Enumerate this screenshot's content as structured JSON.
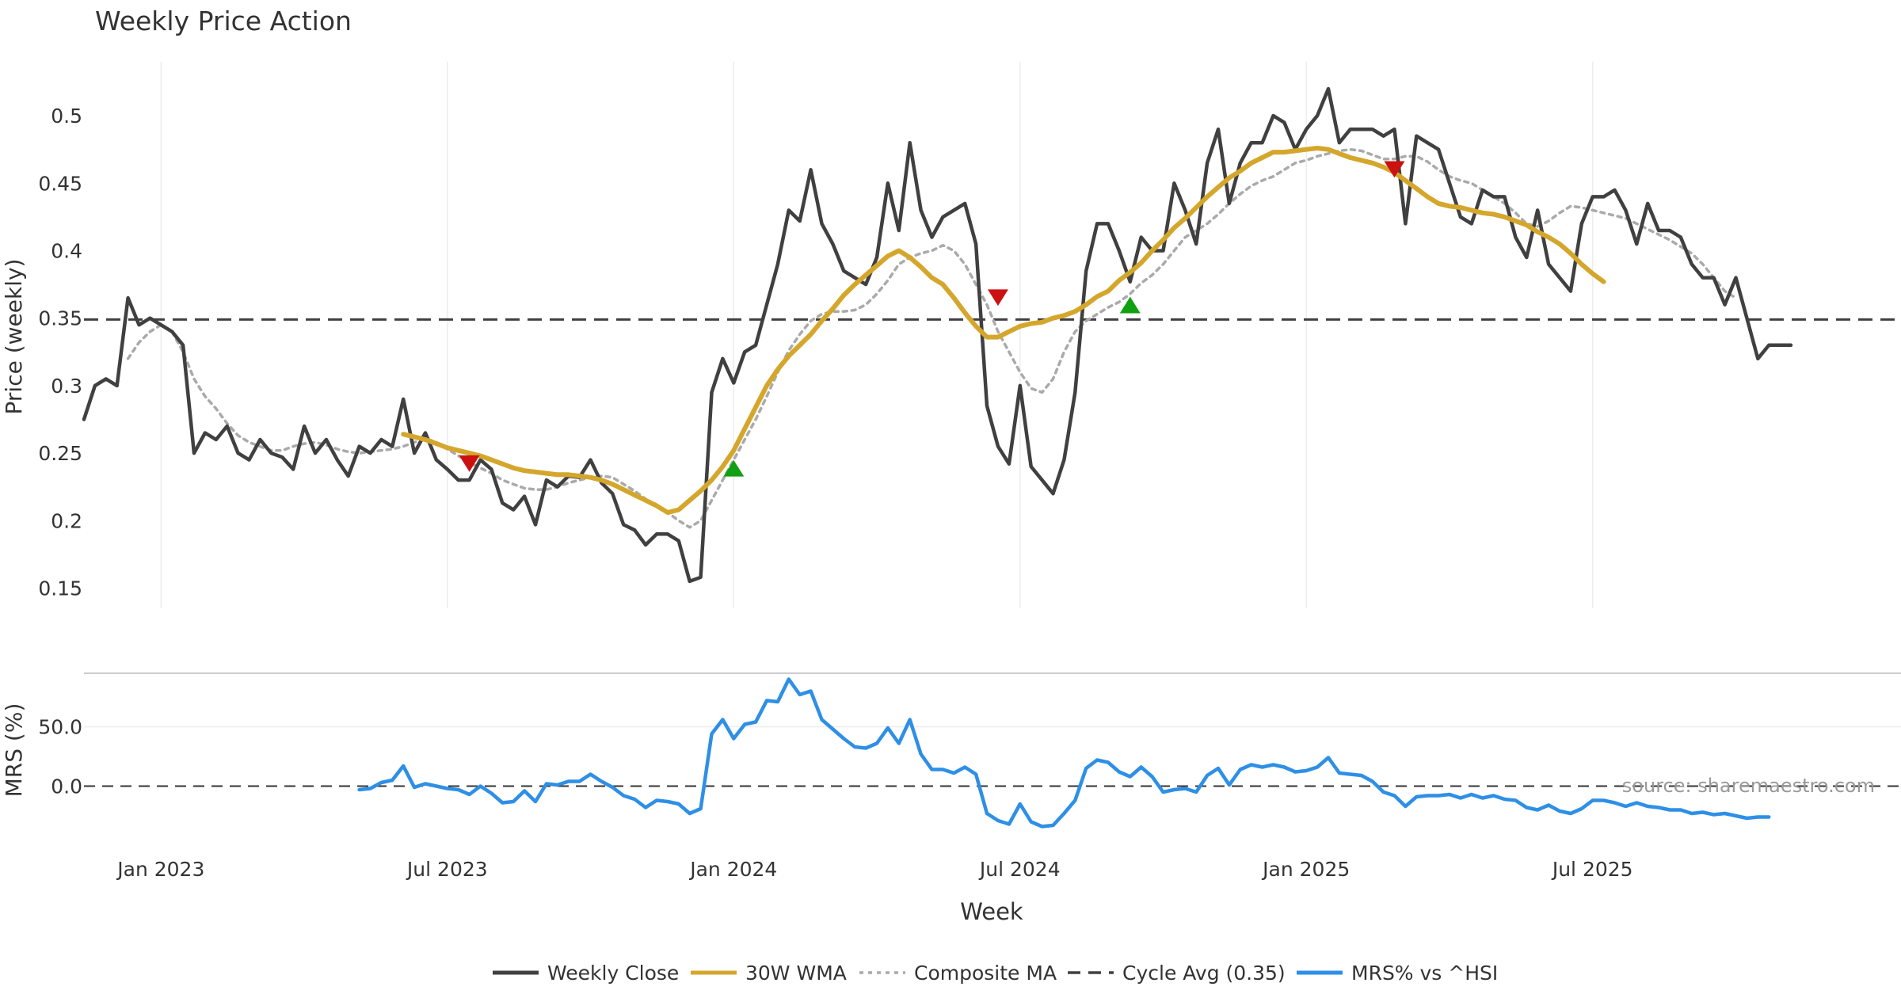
{
  "chart_data": {
    "type": "line",
    "title": "Weekly Price Action",
    "xlabel": "Week",
    "price_panel": {
      "ylabel": "Price (weekly)",
      "ylim": [
        0.135,
        0.54
      ],
      "yticks": [
        0.15,
        0.2,
        0.25,
        0.3,
        0.35,
        0.4,
        0.45,
        0.5
      ],
      "ytick_labels": [
        "0.15",
        "0.2",
        "0.25",
        "0.3",
        "0.35",
        "0.4",
        "0.45",
        "0.5"
      ]
    },
    "mrs_panel": {
      "ylabel": "MRS (%)",
      "ylim": [
        -45,
        95
      ],
      "yticks": [
        0,
        50
      ],
      "ytick_labels": [
        "0.0",
        "50.0"
      ]
    },
    "x_start_week": 0,
    "x_end_week": 165,
    "xticks": [
      {
        "week": 7,
        "label": "Jan 2023"
      },
      {
        "week": 33,
        "label": "Jul 2023"
      },
      {
        "week": 59,
        "label": "Jan 2024"
      },
      {
        "week": 85,
        "label": "Jul 2024"
      },
      {
        "week": 111,
        "label": "Jan 2025"
      },
      {
        "week": 137,
        "label": "Jul 2025"
      }
    ],
    "cycle_avg": 0.349,
    "series": [
      {
        "name": "Weekly Close",
        "color": "#404040",
        "start_week": 0,
        "values": [
          0.275,
          0.3,
          0.305,
          0.3,
          0.365,
          0.345,
          0.35,
          0.345,
          0.34,
          0.33,
          0.25,
          0.265,
          0.26,
          0.27,
          0.25,
          0.245,
          0.26,
          0.25,
          0.247,
          0.238,
          0.27,
          0.25,
          0.26,
          0.245,
          0.233,
          0.255,
          0.25,
          0.26,
          0.255,
          0.29,
          0.25,
          0.265,
          0.245,
          0.238,
          0.23,
          0.23,
          0.245,
          0.238,
          0.213,
          0.208,
          0.218,
          0.197,
          0.23,
          0.225,
          0.233,
          0.232,
          0.245,
          0.228,
          0.22,
          0.197,
          0.193,
          0.182,
          0.19,
          0.19,
          0.185,
          0.155,
          0.158,
          0.295,
          0.32,
          0.302,
          0.325,
          0.33,
          0.36,
          0.39,
          0.43,
          0.422,
          0.46,
          0.42,
          0.405,
          0.385,
          0.38,
          0.375,
          0.395,
          0.45,
          0.415,
          0.48,
          0.43,
          0.41,
          0.425,
          0.43,
          0.435,
          0.405,
          0.285,
          0.255,
          0.242,
          0.3,
          0.24,
          0.23,
          0.22,
          0.245,
          0.295,
          0.385,
          0.42,
          0.42,
          0.4,
          0.377,
          0.41,
          0.4,
          0.4,
          0.45,
          0.43,
          0.405,
          0.465,
          0.49,
          0.435,
          0.465,
          0.48,
          0.48,
          0.5,
          0.495,
          0.475,
          0.49,
          0.5,
          0.52,
          0.48,
          0.49,
          0.49,
          0.49,
          0.485,
          0.49,
          0.42,
          0.485,
          0.48,
          0.475,
          0.45,
          0.425,
          0.42,
          0.445,
          0.44,
          0.44,
          0.41,
          0.395,
          0.43,
          0.39,
          0.38,
          0.37,
          0.42,
          0.44,
          0.44,
          0.445,
          0.43,
          0.405,
          0.435,
          0.415,
          0.415,
          0.41,
          0.39,
          0.38,
          0.38,
          0.36,
          0.38,
          0.35,
          0.32,
          0.33,
          0.33,
          0.33
        ]
      },
      {
        "name": "30W WMA",
        "color": "#d4a72c",
        "start_week": 29,
        "values": [
          0.264,
          0.262,
          0.26,
          0.257,
          0.254,
          0.252,
          0.25,
          0.248,
          0.245,
          0.242,
          0.239,
          0.237,
          0.236,
          0.235,
          0.234,
          0.234,
          0.233,
          0.232,
          0.23,
          0.227,
          0.223,
          0.219,
          0.215,
          0.211,
          0.206,
          0.208,
          0.215,
          0.222,
          0.23,
          0.24,
          0.252,
          0.268,
          0.284,
          0.3,
          0.312,
          0.322,
          0.33,
          0.338,
          0.348,
          0.357,
          0.367,
          0.375,
          0.382,
          0.389,
          0.396,
          0.4,
          0.395,
          0.388,
          0.38,
          0.375,
          0.365,
          0.354,
          0.344,
          0.336,
          0.336,
          0.34,
          0.344,
          0.346,
          0.347,
          0.35,
          0.352,
          0.355,
          0.36,
          0.366,
          0.37,
          0.378,
          0.384,
          0.391,
          0.4,
          0.408,
          0.417,
          0.424,
          0.432,
          0.44,
          0.447,
          0.454,
          0.459,
          0.465,
          0.469,
          0.473,
          0.473,
          0.474,
          0.475,
          0.476,
          0.475,
          0.472,
          0.469,
          0.467,
          0.465,
          0.462,
          0.458,
          0.452,
          0.446,
          0.44,
          0.435,
          0.433,
          0.432,
          0.43,
          0.428,
          0.427,
          0.425,
          0.422,
          0.419,
          0.414,
          0.41,
          0.405,
          0.398,
          0.39,
          0.383,
          0.377
        ]
      },
      {
        "name": "Composite MA",
        "color": "#aaaaaa",
        "start_week": 4,
        "values": [
          0.32,
          0.332,
          0.34,
          0.345,
          0.34,
          0.325,
          0.305,
          0.292,
          0.283,
          0.272,
          0.263,
          0.258,
          0.255,
          0.252,
          0.252,
          0.255,
          0.257,
          0.258,
          0.256,
          0.253,
          0.251,
          0.25,
          0.251,
          0.252,
          0.253,
          0.255,
          0.258,
          0.261,
          0.258,
          0.253,
          0.248,
          0.243,
          0.239,
          0.235,
          0.23,
          0.227,
          0.224,
          0.223,
          0.223,
          0.225,
          0.228,
          0.23,
          0.232,
          0.233,
          0.232,
          0.227,
          0.222,
          0.216,
          0.21,
          0.206,
          0.2,
          0.195,
          0.2,
          0.215,
          0.23,
          0.245,
          0.26,
          0.275,
          0.292,
          0.31,
          0.326,
          0.338,
          0.348,
          0.353,
          0.355,
          0.355,
          0.356,
          0.36,
          0.368,
          0.378,
          0.39,
          0.395,
          0.398,
          0.4,
          0.404,
          0.4,
          0.39,
          0.375,
          0.36,
          0.34,
          0.325,
          0.31,
          0.298,
          0.295,
          0.305,
          0.325,
          0.34,
          0.348,
          0.353,
          0.358,
          0.362,
          0.368,
          0.376,
          0.382,
          0.39,
          0.4,
          0.41,
          0.415,
          0.42,
          0.427,
          0.435,
          0.442,
          0.448,
          0.452,
          0.455,
          0.46,
          0.465,
          0.467,
          0.47,
          0.472,
          0.474,
          0.475,
          0.474,
          0.471,
          0.468,
          0.468,
          0.47,
          0.47,
          0.466,
          0.46,
          0.455,
          0.452,
          0.45,
          0.445,
          0.44,
          0.435,
          0.428,
          0.42,
          0.418,
          0.422,
          0.428,
          0.433,
          0.432,
          0.43,
          0.428,
          0.426,
          0.424,
          0.42,
          0.416,
          0.412,
          0.408,
          0.403,
          0.398,
          0.39,
          0.38,
          0.37,
          0.365
        ]
      },
      {
        "name": "MRS% vs ^HSI",
        "color": "#2e8fe6",
        "start_week": 25,
        "values": [
          -3,
          -2,
          3,
          5,
          17,
          -1,
          2,
          0,
          -2,
          -3,
          -7,
          0,
          -6,
          -14,
          -13,
          -4,
          -13,
          2,
          1,
          4,
          4,
          10,
          4,
          -1,
          -8,
          -11,
          -18,
          -12,
          -13,
          -15,
          -23,
          -19,
          44,
          56,
          40,
          52,
          54,
          72,
          71,
          90,
          77,
          80,
          56,
          48,
          40,
          33,
          32,
          36,
          49,
          36,
          56,
          27,
          14,
          14,
          11,
          16,
          10,
          -23,
          -29,
          -32,
          -15,
          -30,
          -34,
          -33,
          -23,
          -12,
          15,
          22,
          20,
          12,
          8,
          16,
          8,
          -5,
          -3,
          -2,
          -5,
          9,
          15,
          1,
          14,
          18,
          16,
          18,
          16,
          12,
          13,
          16,
          24,
          11,
          10,
          9,
          4,
          -5,
          -8,
          -17,
          -9,
          -8,
          -8,
          -7,
          -10,
          -7,
          -10,
          -8,
          -11,
          -12,
          -18,
          -20,
          -16,
          -21,
          -23,
          -19,
          -12,
          -12,
          -14,
          -17,
          -14,
          -17,
          -18,
          -20,
          -20,
          -23,
          -22,
          -24,
          -23,
          -25,
          -27,
          -26,
          -26
        ]
      }
    ],
    "markers": [
      {
        "type": "sell",
        "week": 35,
        "value": 0.243,
        "color": "#cc1111"
      },
      {
        "type": "buy",
        "week": 59,
        "value": 0.238,
        "color": "#11a011"
      },
      {
        "type": "sell",
        "week": 83,
        "value": 0.366,
        "color": "#cc1111"
      },
      {
        "type": "buy",
        "week": 95,
        "value": 0.359,
        "color": "#11a011"
      },
      {
        "type": "sell",
        "week": 119,
        "value": 0.461,
        "color": "#cc1111"
      }
    ],
    "legend": {
      "position": "bottom-center",
      "items": [
        {
          "label": "Weekly Close",
          "style": "solid",
          "color": "#404040"
        },
        {
          "label": "30W WMA",
          "style": "solid",
          "color": "#d4a72c"
        },
        {
          "label": "Composite MA",
          "style": "dotted",
          "color": "#aaaaaa"
        },
        {
          "label": "Cycle Avg (0.35)",
          "style": "dashed",
          "color": "#404040"
        },
        {
          "label": "MRS% vs ^HSI",
          "style": "solid",
          "color": "#2e8fe6"
        }
      ]
    },
    "watermark": "source: sharemaestro.com"
  }
}
